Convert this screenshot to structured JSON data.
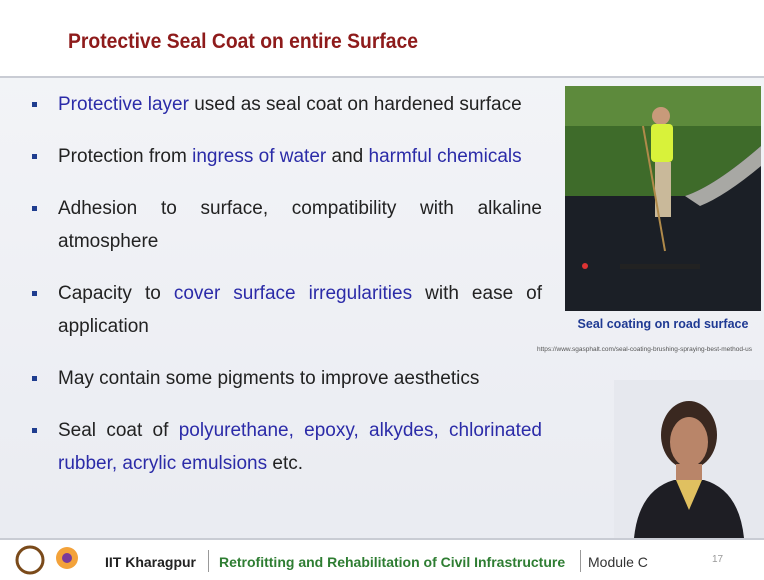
{
  "header": {
    "title": "Protective Seal Coat on entire Surface"
  },
  "bullets": [
    {
      "segments": [
        {
          "text": "Protective layer",
          "color": "#2b2ba8"
        },
        {
          "text": " used as seal coat on hardened surface"
        }
      ]
    },
    {
      "segments": [
        {
          "text": "Protection from "
        },
        {
          "text": "ingress of water",
          "color": "#2b2ba8"
        },
        {
          "text": " and "
        },
        {
          "text": "harmful chemicals",
          "color": "#2b2ba8"
        }
      ]
    },
    {
      "segments": [
        {
          "text": "Adhesion to surface, compatibility with alkaline atmosphere"
        }
      ],
      "justify": true
    },
    {
      "segments": [
        {
          "text": "Capacity to "
        },
        {
          "text": "cover surface irregularities",
          "color": "#2b2ba8"
        },
        {
          "text": " with ease of application"
        }
      ],
      "justify": true
    },
    {
      "segments": [
        {
          "text": "May contain some pigments to improve aesthetics"
        }
      ]
    },
    {
      "segments": [
        {
          "text": "Seal coat of "
        },
        {
          "text": "polyurethane, epoxy, alkydes, chlorinated rubber, acrylic emulsions",
          "color": "#2b2ba8"
        },
        {
          "text": " etc."
        }
      ],
      "justify": true
    }
  ],
  "figure": {
    "caption": "Seal coating on road surface",
    "source": "https://www.sgasphalt.com/seal-coating-brushing-spraying-best-method-us"
  },
  "footer": {
    "institute": "IIT Kharagpur",
    "course": "Retrofitting and Rehabilitation of Civil Infrastructure",
    "module": "Module C",
    "page": "17"
  }
}
